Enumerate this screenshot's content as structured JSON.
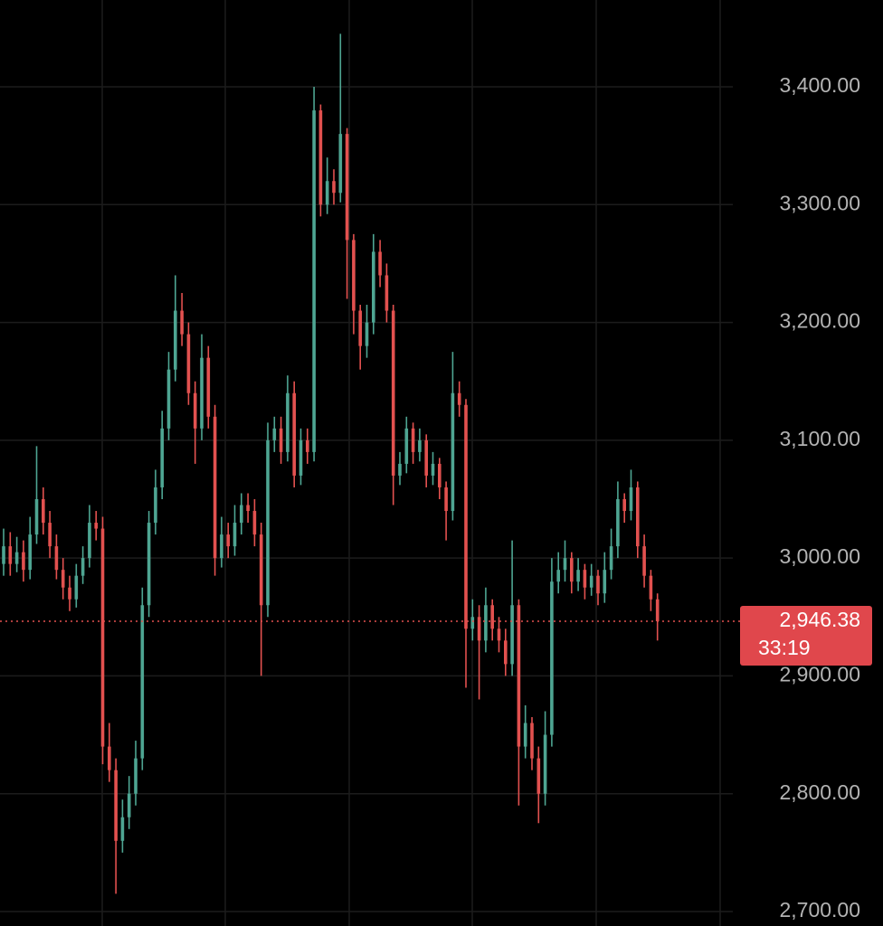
{
  "chart_data": {
    "type": "candlestick",
    "open": [
      2995,
      3010,
      2995,
      3005,
      2990,
      3020,
      3050,
      3030,
      3010,
      2990,
      2975,
      2965,
      2985,
      3000,
      3030,
      3025,
      2840,
      2820,
      2760,
      2780,
      2800,
      2830,
      2960,
      3030,
      3060,
      3110,
      3160,
      3210,
      3190,
      3140,
      3110,
      3170,
      3120,
      3000,
      3020,
      3010,
      3030,
      3045,
      3040,
      3020,
      2960,
      3100,
      3110,
      3090,
      3140,
      3070,
      3100,
      3090,
      3380,
      3300,
      3320,
      3310,
      3360,
      3270,
      3210,
      3180,
      3200,
      3260,
      3240,
      3210,
      3070,
      3080,
      3110,
      3090,
      3100,
      3070,
      3080,
      3060,
      3040,
      3140,
      3130,
      2940,
      2950,
      2930,
      2960,
      2940,
      2930,
      2910,
      2960,
      2840,
      2860,
      2830,
      2800,
      2850,
      2980,
      2990,
      3000,
      2980,
      2990,
      2975,
      2985,
      2970,
      2990,
      3010,
      3050,
      3040,
      3060,
      3010,
      2985,
      2965
    ],
    "high": [
      3025,
      3022,
      3018,
      3015,
      3035,
      3095,
      3060,
      3040,
      3020,
      3000,
      2985,
      2995,
      3010,
      3045,
      3040,
      3035,
      2860,
      2830,
      2795,
      2815,
      2845,
      2975,
      3040,
      3075,
      3125,
      3175,
      3240,
      3225,
      3200,
      3150,
      3190,
      3180,
      3130,
      3035,
      3030,
      3045,
      3055,
      3055,
      3050,
      3030,
      3115,
      3120,
      3120,
      3155,
      3150,
      3110,
      3110,
      3400,
      3385,
      3340,
      3330,
      3445,
      3365,
      3275,
      3215,
      3215,
      3275,
      3270,
      3250,
      3215,
      3090,
      3120,
      3115,
      3110,
      3105,
      3090,
      3085,
      3065,
      3175,
      3150,
      3135,
      2965,
      2960,
      2975,
      2965,
      2950,
      2940,
      3015,
      2965,
      2875,
      2865,
      2840,
      2870,
      3000,
      3005,
      3015,
      3005,
      3000,
      2995,
      2995,
      2990,
      3005,
      3025,
      3065,
      3055,
      3075,
      3065,
      3020,
      2990,
      2970
    ],
    "low": [
      2985,
      2985,
      2988,
      2980,
      2982,
      3012,
      3020,
      3000,
      2982,
      2965,
      2955,
      2958,
      2978,
      2992,
      3015,
      2825,
      2810,
      2715,
      2750,
      2770,
      2790,
      2820,
      2950,
      3020,
      3050,
      3100,
      3150,
      3180,
      3130,
      3080,
      3100,
      3110,
      2985,
      2992,
      3000,
      3002,
      3020,
      3030,
      3010,
      2900,
      2950,
      3090,
      3080,
      3082,
      3060,
      3062,
      3080,
      3082,
      3290,
      3292,
      3300,
      3302,
      3220,
      3190,
      3160,
      3170,
      3190,
      3230,
      3200,
      3045,
      3062,
      3072,
      3080,
      3082,
      3060,
      3062,
      3050,
      3015,
      3032,
      3120,
      2890,
      2930,
      2880,
      2920,
      2930,
      2920,
      2900,
      2900,
      2790,
      2830,
      2820,
      2775,
      2790,
      2840,
      2970,
      2980,
      2970,
      2972,
      2965,
      2968,
      2960,
      2962,
      2982,
      3000,
      3030,
      3032,
      3000,
      2975,
      2955,
      2930
    ],
    "close": [
      3010,
      2995,
      3005,
      2990,
      3020,
      3050,
      3030,
      3010,
      2990,
      2975,
      2965,
      2985,
      3000,
      3030,
      3025,
      2840,
      2820,
      2760,
      2780,
      2800,
      2830,
      2960,
      3030,
      3060,
      3110,
      3160,
      3210,
      3190,
      3140,
      3110,
      3170,
      3120,
      3000,
      3020,
      3010,
      3030,
      3045,
      3040,
      3020,
      2960,
      3100,
      3110,
      3090,
      3140,
      3070,
      3100,
      3090,
      3380,
      3300,
      3320,
      3310,
      3360,
      3270,
      3210,
      3180,
      3200,
      3260,
      3240,
      3210,
      3070,
      3080,
      3110,
      3090,
      3100,
      3070,
      3080,
      3060,
      3040,
      3140,
      3130,
      2940,
      2950,
      2930,
      2960,
      2940,
      2930,
      2910,
      2960,
      2840,
      2860,
      2830,
      2800,
      2850,
      2980,
      2990,
      3000,
      2980,
      2990,
      2975,
      2985,
      2970,
      2990,
      3010,
      3050,
      3040,
      3060,
      3010,
      2985,
      2965,
      2946.38
    ],
    "up_color": "#4ea592",
    "down_color": "#e2514f",
    "ylim": [
      2687.7,
      3473.7
    ],
    "yticks": [
      {
        "value": 2700,
        "label": "2,700.00"
      },
      {
        "value": 2800,
        "label": "2,800.00"
      },
      {
        "value": 2900,
        "label": "2,900.00"
      },
      {
        "value": 3000,
        "label": "3,000.00"
      },
      {
        "value": 3100,
        "label": "3,100.00"
      },
      {
        "value": 3200,
        "label": "3,200.00"
      },
      {
        "value": 3300,
        "label": "3,300.00"
      },
      {
        "value": 3400,
        "label": "3,400.00"
      }
    ],
    "grid": true,
    "last_price": {
      "value": 2946.38,
      "label": "2,946.38"
    },
    "countdown": "33:19"
  }
}
